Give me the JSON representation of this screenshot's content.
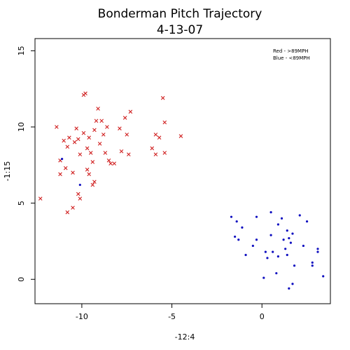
{
  "chart_data": {
    "type": "scatter",
    "title": "Bonderman Pitch Trajectory",
    "subtitle": "4-13-07",
    "xlabel": "-12:4",
    "ylabel": "-1:15",
    "xlim": [
      -12.6,
      3.8
    ],
    "ylim": [
      -1.6,
      15.8
    ],
    "xticks": [
      -10,
      -5,
      0
    ],
    "yticks": [
      0,
      5,
      10,
      15
    ],
    "grid": false,
    "legend_position": "top-right",
    "legend": [
      "Red - >89MPH",
      "Blue - <89MPH"
    ],
    "series": [
      {
        "marker": "x",
        "color": "#d02020",
        "points": [
          [
            -12.3,
            5.3
          ],
          [
            -11.4,
            10.0
          ],
          [
            -11.2,
            6.9
          ],
          [
            -11.0,
            9.1
          ],
          [
            -11.2,
            7.8
          ],
          [
            -10.8,
            8.7
          ],
          [
            -10.9,
            7.3
          ],
          [
            -10.7,
            9.3
          ],
          [
            -10.5,
            7.0
          ],
          [
            -10.4,
            9.0
          ],
          [
            -10.8,
            4.4
          ],
          [
            -10.5,
            4.7
          ],
          [
            -10.3,
            9.9
          ],
          [
            -10.2,
            9.2
          ],
          [
            -10.1,
            8.2
          ],
          [
            -10.2,
            5.6
          ],
          [
            -10.1,
            5.3
          ],
          [
            -9.9,
            12.1
          ],
          [
            -9.8,
            12.2
          ],
          [
            -9.9,
            9.6
          ],
          [
            -9.7,
            7.2
          ],
          [
            -9.7,
            8.6
          ],
          [
            -9.6,
            9.3
          ],
          [
            -9.5,
            8.3
          ],
          [
            -9.6,
            6.9
          ],
          [
            -9.4,
            7.7
          ],
          [
            -9.3,
            9.8
          ],
          [
            -9.4,
            6.2
          ],
          [
            -9.3,
            6.4
          ],
          [
            -9.2,
            10.4
          ],
          [
            -9.1,
            11.2
          ],
          [
            -9.0,
            8.9
          ],
          [
            -8.9,
            10.4
          ],
          [
            -8.8,
            9.5
          ],
          [
            -8.7,
            8.3
          ],
          [
            -8.6,
            10.0
          ],
          [
            -8.4,
            7.6
          ],
          [
            -8.5,
            7.8
          ],
          [
            -8.2,
            7.6
          ],
          [
            -7.9,
            9.9
          ],
          [
            -7.8,
            8.4
          ],
          [
            -7.6,
            10.6
          ],
          [
            -7.5,
            9.5
          ],
          [
            -7.4,
            8.2
          ],
          [
            -7.3,
            11.0
          ],
          [
            -6.1,
            8.6
          ],
          [
            -5.9,
            9.5
          ],
          [
            -5.9,
            8.2
          ],
          [
            -5.7,
            9.3
          ],
          [
            -5.5,
            11.9
          ],
          [
            -5.4,
            10.3
          ],
          [
            -5.4,
            8.3
          ],
          [
            -4.5,
            9.4
          ]
        ]
      },
      {
        "marker": "dot",
        "color": "#1010c0",
        "points": [
          [
            -11.1,
            7.9
          ],
          [
            -10.1,
            6.2
          ],
          [
            -1.7,
            4.1
          ],
          [
            -1.5,
            2.8
          ],
          [
            -1.4,
            3.8
          ],
          [
            -1.3,
            2.6
          ],
          [
            -1.1,
            3.4
          ],
          [
            -0.9,
            1.6
          ],
          [
            -0.5,
            2.2
          ],
          [
            -0.3,
            4.1
          ],
          [
            -0.3,
            2.6
          ],
          [
            0.1,
            0.1
          ],
          [
            0.2,
            1.8
          ],
          [
            0.3,
            1.4
          ],
          [
            0.5,
            4.4
          ],
          [
            0.5,
            2.9
          ],
          [
            0.6,
            1.8
          ],
          [
            0.8,
            0.4
          ],
          [
            0.9,
            3.6
          ],
          [
            0.9,
            1.5
          ],
          [
            1.1,
            4.0
          ],
          [
            1.2,
            2.6
          ],
          [
            1.3,
            2.0
          ],
          [
            1.4,
            3.2
          ],
          [
            1.4,
            1.6
          ],
          [
            1.5,
            2.7
          ],
          [
            1.5,
            -0.6
          ],
          [
            1.6,
            2.4
          ],
          [
            1.7,
            3.0
          ],
          [
            1.7,
            -0.3
          ],
          [
            1.8,
            0.9
          ],
          [
            2.1,
            4.2
          ],
          [
            2.3,
            2.2
          ],
          [
            2.5,
            3.8
          ],
          [
            2.8,
            1.1
          ],
          [
            2.8,
            0.9
          ],
          [
            3.1,
            2.0
          ],
          [
            3.1,
            1.8
          ],
          [
            3.4,
            0.2
          ]
        ]
      }
    ]
  }
}
